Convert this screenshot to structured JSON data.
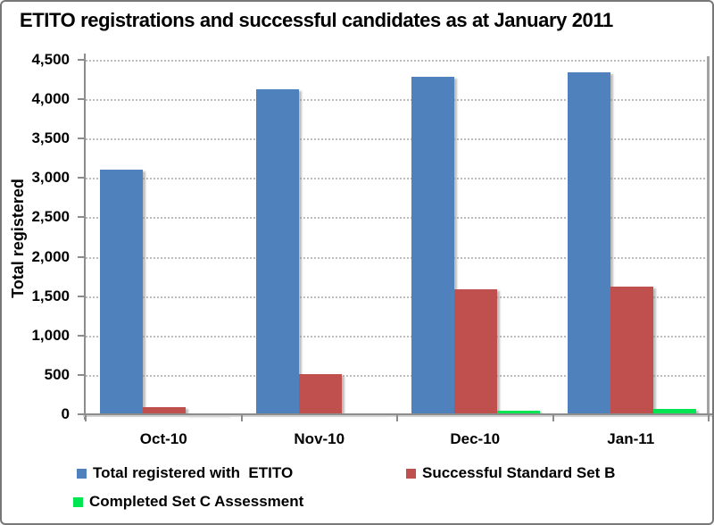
{
  "chart_data": {
    "type": "bar",
    "title": "ETITO registrations and successful candidates as at January 2011",
    "ylabel": "Total registered",
    "xlabel": "",
    "categories": [
      "Oct-10",
      "Nov-10",
      "Dec-10",
      "Jan-11"
    ],
    "series": [
      {
        "name": "Total registered with  ETITO",
        "color": "#4f81bd",
        "values": [
          3110,
          4130,
          4290,
          4340
        ]
      },
      {
        "name": "Successful Standard Set B",
        "color": "#c0504d",
        "values": [
          90,
          510,
          1590,
          1620
        ]
      },
      {
        "name": "Completed Set C Assessment",
        "color": "#00e551",
        "values": [
          5,
          15,
          50,
          70
        ]
      }
    ],
    "ylim": [
      0,
      4500
    ],
    "ytick_step": 500,
    "ytick_labels": [
      "0",
      "500",
      "1,000",
      "1,500",
      "2,000",
      "2,500",
      "3,000",
      "3,500",
      "4,000",
      "4,500"
    ],
    "grid": "horizontal-dotted",
    "legend_position": "bottom-two-rows"
  }
}
